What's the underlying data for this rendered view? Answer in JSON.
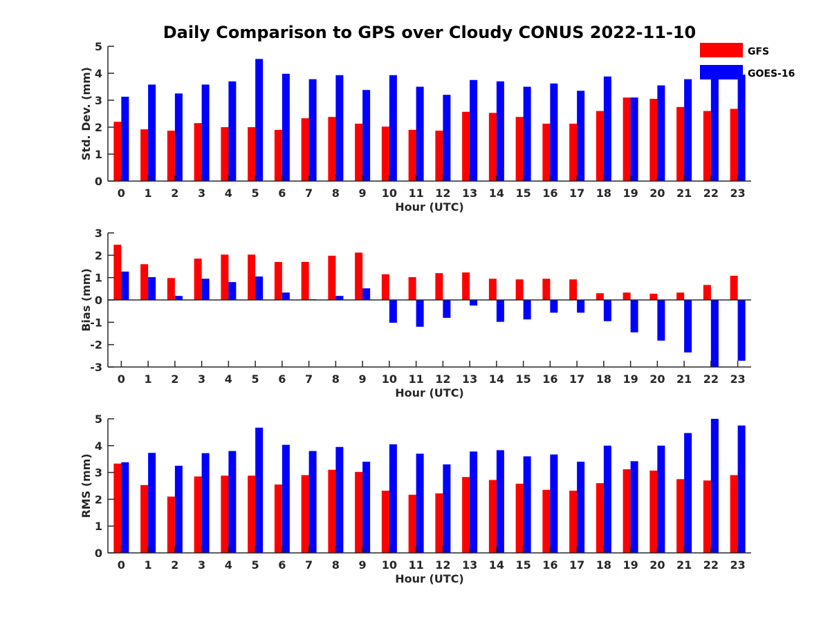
{
  "chart_data": {
    "type": "bar",
    "title": "Daily Comparison to GPS over Cloudy CONUS 2022-11-10",
    "legend": {
      "position": "top-right",
      "entries": [
        "GFS",
        "GOES-16"
      ]
    },
    "colors": {
      "GFS": "#ff0000",
      "GOES-16": "#0000ff"
    },
    "categories": [
      "0",
      "1",
      "2",
      "3",
      "4",
      "5",
      "6",
      "7",
      "8",
      "9",
      "10",
      "11",
      "12",
      "13",
      "14",
      "15",
      "16",
      "17",
      "18",
      "19",
      "20",
      "21",
      "22",
      "23"
    ],
    "panels": [
      {
        "id": "std",
        "ylabel": "Std. Dev. (mm)",
        "xlabel": "Hour (UTC)",
        "ylim": [
          0,
          5
        ],
        "yticks": [
          0,
          1,
          2,
          3,
          4,
          5
        ],
        "series": [
          {
            "name": "GFS",
            "values": [
              2.2,
              1.92,
              1.87,
              2.15,
              2.0,
              2.0,
              1.9,
              2.33,
              2.38,
              2.13,
              2.02,
              1.9,
              1.87,
              2.57,
              2.53,
              2.38,
              2.13,
              2.13,
              2.6,
              3.1,
              3.05,
              2.75,
              2.6,
              2.68
            ]
          },
          {
            "name": "GOES-16",
            "values": [
              3.13,
              3.58,
              3.25,
              3.58,
              3.7,
              4.53,
              3.98,
              3.78,
              3.93,
              3.38,
              3.93,
              3.5,
              3.2,
              3.75,
              3.7,
              3.5,
              3.62,
              3.35,
              3.88,
              3.1,
              3.55,
              3.78,
              4.15,
              3.95
            ]
          }
        ]
      },
      {
        "id": "bias",
        "ylabel": "Bias (mm)",
        "xlabel": "Hour (UTC)",
        "ylim": [
          -3,
          3
        ],
        "yticks": [
          -3,
          -2,
          -1,
          0,
          1,
          2,
          3
        ],
        "series": [
          {
            "name": "GFS",
            "values": [
              2.47,
              1.6,
              0.98,
              1.85,
              2.03,
              2.03,
              1.7,
              1.7,
              1.98,
              2.12,
              1.15,
              1.02,
              1.2,
              1.23,
              0.95,
              0.92,
              0.95,
              0.92,
              0.3,
              0.33,
              0.28,
              0.33,
              0.67,
              1.08
            ]
          },
          {
            "name": "GOES-16",
            "values": [
              1.27,
              1.02,
              0.18,
              0.95,
              0.8,
              1.05,
              0.33,
              0.03,
              0.18,
              0.52,
              -1.02,
              -1.2,
              -0.8,
              -0.25,
              -0.98,
              -0.87,
              -0.57,
              -0.57,
              -0.95,
              -1.45,
              -1.82,
              -2.35,
              -3.0,
              -2.72
            ]
          }
        ]
      },
      {
        "id": "rms",
        "ylabel": "RMS (mm)",
        "xlabel": "Hour (UTC)",
        "ylim": [
          0,
          5
        ],
        "yticks": [
          0,
          1,
          2,
          3,
          4,
          5
        ],
        "series": [
          {
            "name": "GFS",
            "values": [
              3.33,
              2.53,
              2.1,
              2.85,
              2.88,
              2.88,
              2.55,
              2.9,
              3.1,
              3.02,
              2.32,
              2.17,
              2.22,
              2.83,
              2.72,
              2.58,
              2.35,
              2.32,
              2.6,
              3.12,
              3.07,
              2.75,
              2.7,
              2.9
            ]
          },
          {
            "name": "GOES-16",
            "values": [
              3.38,
              3.73,
              3.25,
              3.72,
              3.8,
              4.67,
              4.03,
              3.8,
              3.95,
              3.4,
              4.05,
              3.7,
              3.3,
              3.78,
              3.83,
              3.6,
              3.67,
              3.4,
              4.0,
              3.42,
              4.0,
              4.47,
              5.0,
              4.75
            ]
          }
        ]
      }
    ]
  }
}
